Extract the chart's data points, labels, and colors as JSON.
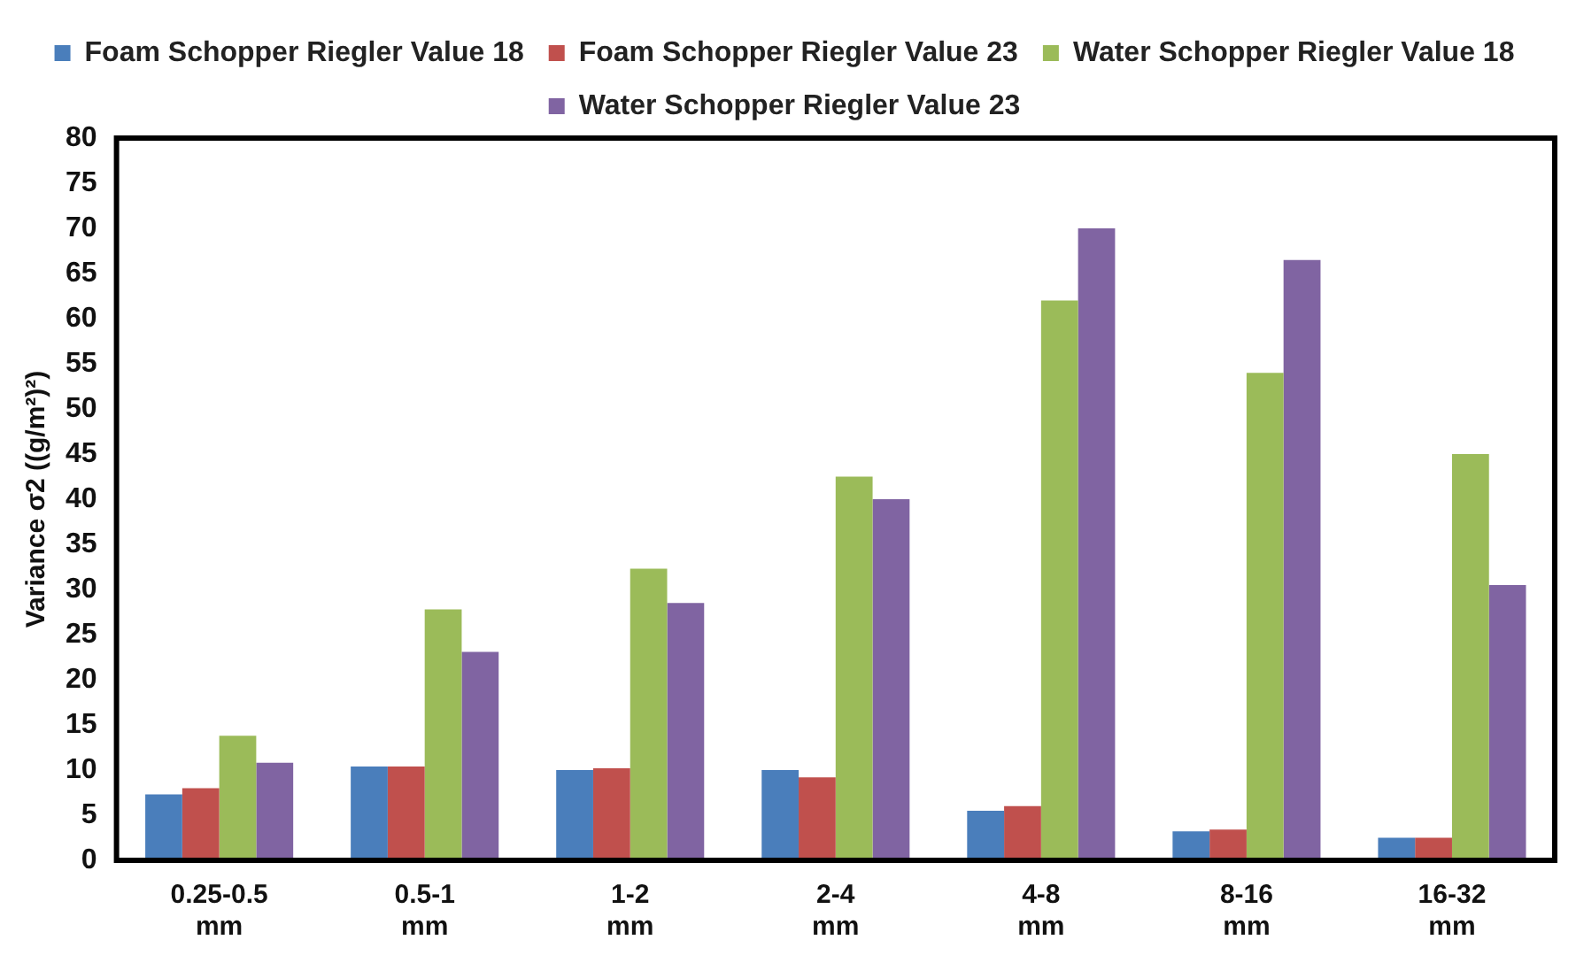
{
  "chart_data": {
    "type": "bar",
    "ylabel": "Variance σ2 ((g/m²)²)",
    "categories": [
      "0.25-0.5 mm",
      "0.5-1 mm",
      "1-2 mm",
      "2-4 mm",
      "4-8 mm",
      "8-16 mm",
      "16-32 mm"
    ],
    "series": [
      {
        "name": "Foam Schopper Riegler Value 18",
        "color": "#4a7ebb",
        "values": [
          7.3,
          10.4,
          10,
          10,
          5.5,
          3.2,
          2.5
        ]
      },
      {
        "name": "Foam Schopper Riegler Value 23",
        "color": "#c0504d",
        "values": [
          8,
          10.4,
          10.2,
          9.2,
          6,
          3.4,
          2.5
        ]
      },
      {
        "name": "Water Schopper Riegler Value 18",
        "color": "#9bbb59",
        "values": [
          13.8,
          27.8,
          32.3,
          42.5,
          62,
          54,
          45
        ]
      },
      {
        "name": "Water Schopper Riegler Value 23",
        "color": "#8064a2",
        "values": [
          10.8,
          23.1,
          28.5,
          40,
          70,
          66.5,
          30.5
        ]
      }
    ],
    "ylim": [
      0,
      80
    ],
    "yticks": [
      0,
      5,
      10,
      15,
      20,
      25,
      30,
      35,
      40,
      45,
      50,
      55,
      60,
      65,
      70,
      75,
      80
    ],
    "grid": false,
    "legend": "top"
  }
}
